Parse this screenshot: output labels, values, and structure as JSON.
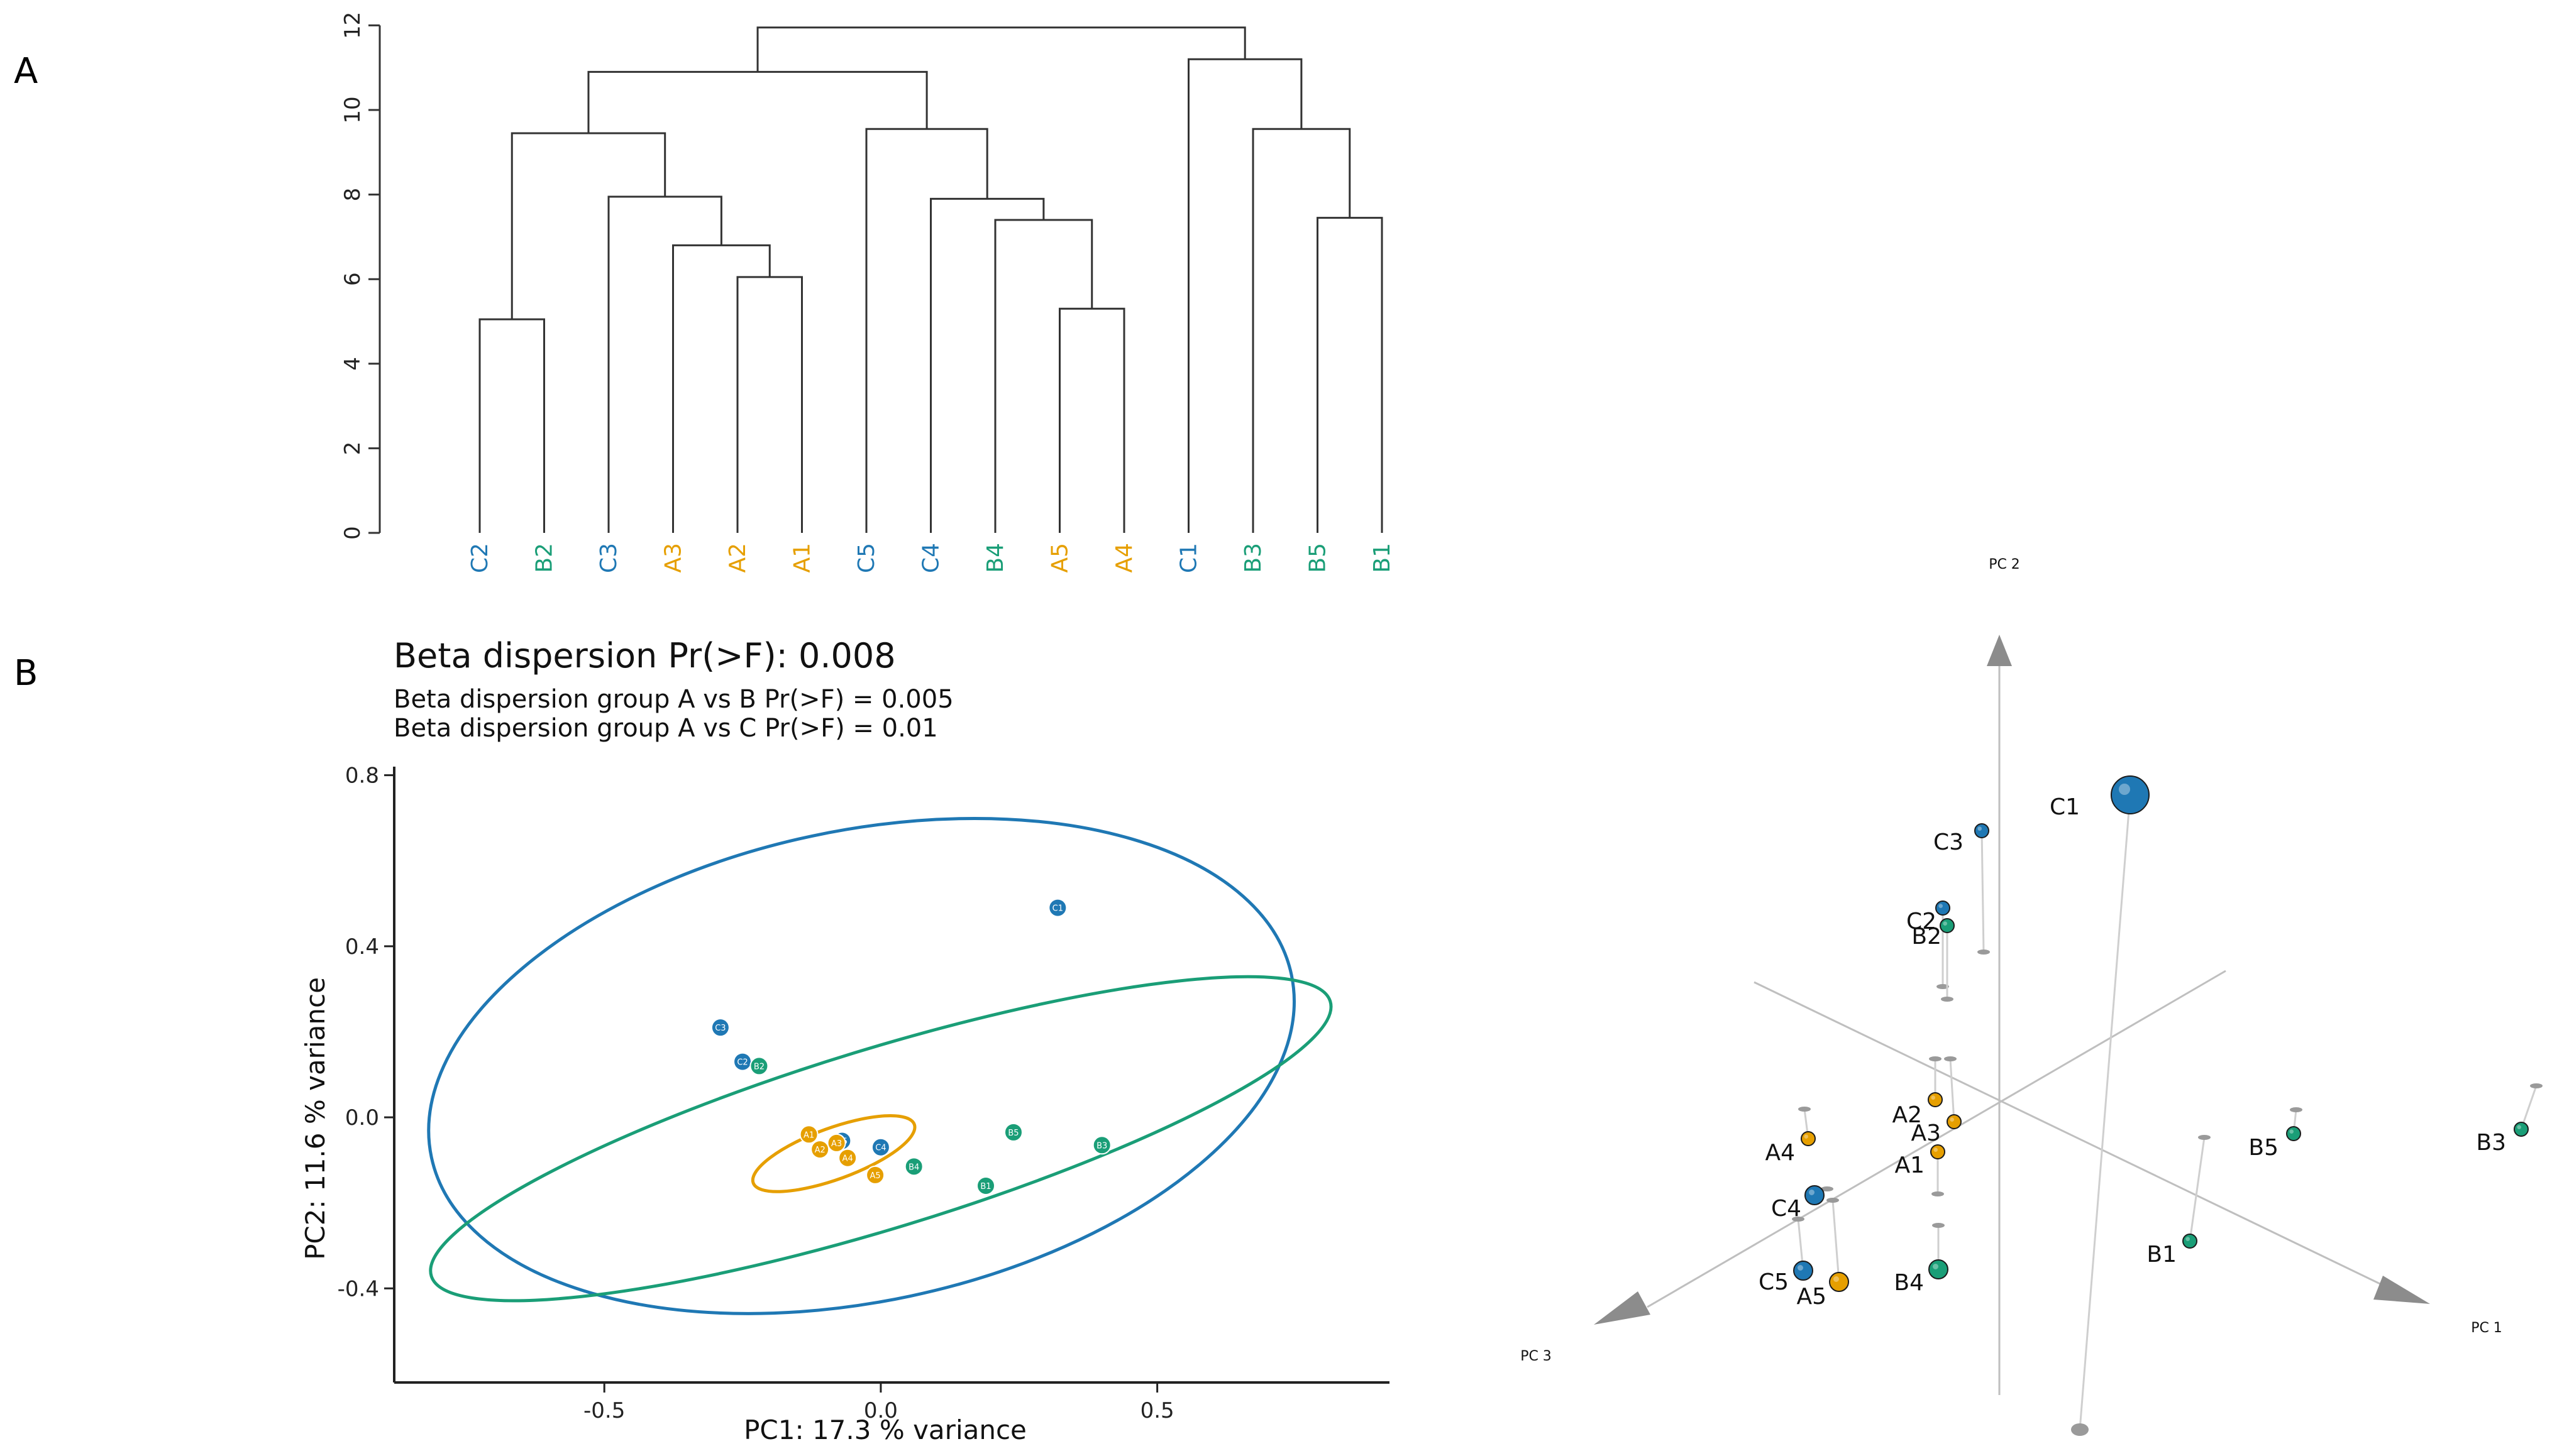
{
  "panel_letters": {
    "a": "A",
    "b": "B"
  },
  "colors": {
    "A": "#e69f00",
    "B": "#1a9e77",
    "C": "#1f78b4",
    "line": "#333333",
    "grey": "#bfbfbf"
  },
  "chart_data": [
    {
      "type": "dendrogram",
      "panel": "A",
      "ylim": [
        0,
        12
      ],
      "yticks": [
        "0",
        "2",
        "4",
        "6",
        "8",
        "10",
        "12"
      ],
      "leaves": [
        {
          "label": "C2",
          "group": "C"
        },
        {
          "label": "B2",
          "group": "B"
        },
        {
          "label": "C3",
          "group": "C"
        },
        {
          "label": "A3",
          "group": "A"
        },
        {
          "label": "A2",
          "group": "A"
        },
        {
          "label": "A1",
          "group": "A"
        },
        {
          "label": "C5",
          "group": "C"
        },
        {
          "label": "C4",
          "group": "C"
        },
        {
          "label": "B4",
          "group": "B"
        },
        {
          "label": "A5",
          "group": "A"
        },
        {
          "label": "A4",
          "group": "A"
        },
        {
          "label": "C1",
          "group": "C"
        },
        {
          "label": "B3",
          "group": "B"
        },
        {
          "label": "B5",
          "group": "B"
        },
        {
          "label": "B1",
          "group": "B"
        }
      ],
      "merges": [
        {
          "a": "L0",
          "b": "L1",
          "h": 5.05
        },
        {
          "a": "L4",
          "b": "L5",
          "h": 6.05
        },
        {
          "a": "L3",
          "b": "M1",
          "h": 6.8
        },
        {
          "a": "L2",
          "b": "M2",
          "h": 7.95
        },
        {
          "a": "M0",
          "b": "M3",
          "h": 9.45
        },
        {
          "a": "L9",
          "b": "L10",
          "h": 5.3
        },
        {
          "a": "L8",
          "b": "M5",
          "h": 7.4
        },
        {
          "a": "L7",
          "b": "M6",
          "h": 7.9
        },
        {
          "a": "L6",
          "b": "M7",
          "h": 9.55
        },
        {
          "a": "M4",
          "b": "M8",
          "h": 10.9
        },
        {
          "a": "L13",
          "b": "L14",
          "h": 7.45
        },
        {
          "a": "L12",
          "b": "M10",
          "h": 9.55
        },
        {
          "a": "L11",
          "b": "M11",
          "h": 11.2
        },
        {
          "a": "M9",
          "b": "M12",
          "h": 11.95
        }
      ]
    },
    {
      "type": "scatter",
      "panel": "B",
      "title": "Beta dispersion Pr(>F): 0.008",
      "subtitles": [
        "Beta dispersion group A vs B Pr(>F) = 0.005",
        "Beta dispersion group A vs C Pr(>F) = 0.01"
      ],
      "xlabel": "PC1: 17.3 % variance",
      "ylabel": "PC2: 11.6 % variance",
      "xlim": [
        -0.88,
        0.92
      ],
      "ylim": [
        -0.62,
        0.82
      ],
      "xticks": [
        {
          "v": -0.5,
          "label": "-0.5"
        },
        {
          "v": 0.0,
          "label": "0.0"
        },
        {
          "v": 0.5,
          "label": "0.5"
        }
      ],
      "yticks": [
        {
          "v": -0.4,
          "label": "-0.4"
        },
        {
          "v": 0.0,
          "label": "0.0"
        },
        {
          "v": 0.4,
          "label": "0.4"
        },
        {
          "v": 0.8,
          "label": "0.8"
        }
      ],
      "points": [
        {
          "label": "C1",
          "group": "C",
          "x": 0.32,
          "y": 0.49
        },
        {
          "label": "C3",
          "group": "C",
          "x": -0.29,
          "y": 0.21
        },
        {
          "label": "C2",
          "group": "C",
          "x": -0.25,
          "y": 0.13
        },
        {
          "label": "B2",
          "group": "B",
          "x": -0.22,
          "y": 0.12
        },
        {
          "label": "C4",
          "group": "C",
          "x": 0.0,
          "y": -0.07
        },
        {
          "label": "C5",
          "group": "C",
          "x": -0.07,
          "y": -0.055
        },
        {
          "label": "B4",
          "group": "B",
          "x": 0.06,
          "y": -0.115
        },
        {
          "label": "B5",
          "group": "B",
          "x": 0.24,
          "y": -0.035
        },
        {
          "label": "B3",
          "group": "B",
          "x": 0.4,
          "y": -0.065
        },
        {
          "label": "B1",
          "group": "B",
          "x": 0.19,
          "y": -0.16
        },
        {
          "label": "A1",
          "group": "A",
          "x": -0.13,
          "y": -0.04
        },
        {
          "label": "A2",
          "group": "A",
          "x": -0.11,
          "y": -0.075
        },
        {
          "label": "A3",
          "group": "A",
          "x": -0.08,
          "y": -0.06
        },
        {
          "label": "A4",
          "group": "A",
          "x": -0.06,
          "y": -0.095
        },
        {
          "label": "A5",
          "group": "A",
          "x": -0.01,
          "y": -0.135
        }
      ],
      "ellipses": [
        {
          "group": "C",
          "cx": -0.035,
          "cy": 0.12,
          "rx": 0.795,
          "ry": 0.55,
          "angle": -12
        },
        {
          "group": "B",
          "cx": 0.0,
          "cy": -0.05,
          "rx": 0.85,
          "ry": 0.21,
          "angle": -17
        },
        {
          "group": "A",
          "cx": -0.085,
          "cy": -0.085,
          "rx": 0.155,
          "ry": 0.06,
          "angle": -20
        }
      ]
    },
    {
      "type": "scatter3d",
      "panel": "B",
      "axes": [
        "PC 1",
        "PC 2",
        "PC 3"
      ],
      "points": [
        {
          "label": "C1",
          "group": "C",
          "size": "large"
        },
        {
          "label": "C3",
          "group": "C",
          "size": "small"
        },
        {
          "label": "C2",
          "group": "C",
          "size": "small"
        },
        {
          "label": "B2",
          "group": "B",
          "size": "small"
        },
        {
          "label": "A2",
          "group": "A",
          "size": "small"
        },
        {
          "label": "A3",
          "group": "A",
          "size": "small"
        },
        {
          "label": "A1",
          "group": "A",
          "size": "small"
        },
        {
          "label": "A4",
          "group": "A",
          "size": "small"
        },
        {
          "label": "C4",
          "group": "C",
          "size": "medium"
        },
        {
          "label": "C5",
          "group": "C",
          "size": "medium"
        },
        {
          "label": "A5",
          "group": "A",
          "size": "medium"
        },
        {
          "label": "B4",
          "group": "B",
          "size": "medium"
        },
        {
          "label": "B5",
          "group": "B",
          "size": "small"
        },
        {
          "label": "B1",
          "group": "B",
          "size": "small"
        },
        {
          "label": "B3",
          "group": "B",
          "size": "small"
        }
      ]
    }
  ]
}
